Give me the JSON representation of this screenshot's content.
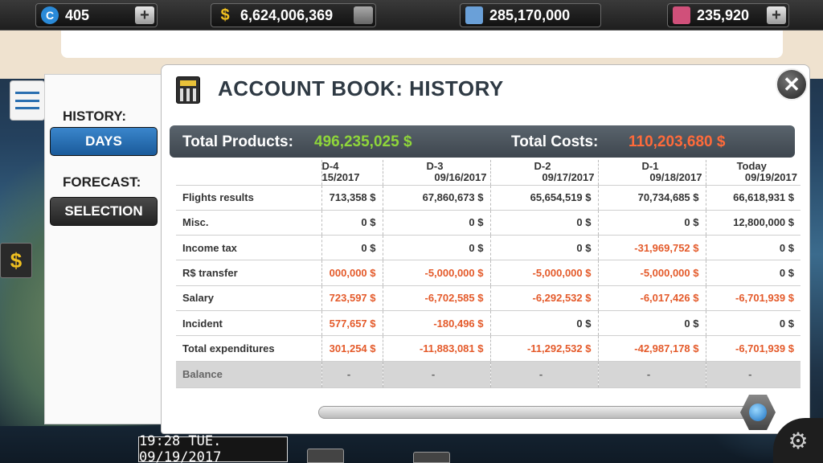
{
  "topbar": {
    "coins": "405",
    "cash": "6,624,006,369",
    "fuel": "285,170,000",
    "tickets": "235,920",
    "plus": "+",
    "coins_icon": "C",
    "cash_icon": "$"
  },
  "side": {
    "history_label": "HISTORY:",
    "days_button": "DAYS",
    "forecast_label": "FORECAST:",
    "selection_button": "SELECTION"
  },
  "dollar_button": "$",
  "panel": {
    "title": "ACCOUNT BOOK: HISTORY",
    "close": "✕",
    "total_products_label": "Total Products:",
    "total_products_value": "496,235,025 $",
    "total_costs_label": "Total Costs:",
    "total_costs_value": "110,203,680 $"
  },
  "table": {
    "columns": [
      {
        "day": "D-4",
        "date": "15/2017"
      },
      {
        "day": "D-3",
        "date": "09/16/2017"
      },
      {
        "day": "D-2",
        "date": "09/17/2017"
      },
      {
        "day": "D-1",
        "date": "09/18/2017"
      },
      {
        "day": "Today",
        "date": "09/19/2017"
      }
    ],
    "rows": [
      {
        "label": "Flights results",
        "values": [
          "713,358 $",
          "67,860,673 $",
          "65,654,519 $",
          "70,734,685 $",
          "66,618,931 $"
        ]
      },
      {
        "label": "Misc.",
        "values": [
          "0 $",
          "0 $",
          "0 $",
          "0 $",
          "12,800,000 $"
        ]
      },
      {
        "label": "Income tax",
        "values": [
          "0 $",
          "0 $",
          "0 $",
          "-31,969,752 $",
          "0 $"
        ]
      },
      {
        "label": "R$ transfer",
        "values": [
          "000,000 $",
          "-5,000,000 $",
          "-5,000,000 $",
          "-5,000,000 $",
          "0 $"
        ]
      },
      {
        "label": "Salary",
        "values": [
          "723,597 $",
          "-6,702,585 $",
          "-6,292,532 $",
          "-6,017,426 $",
          "-6,701,939 $"
        ]
      },
      {
        "label": "Incident",
        "values": [
          "577,657 $",
          "-180,496 $",
          "0 $",
          "0 $",
          "0 $"
        ]
      },
      {
        "label": "Total expenditures",
        "values": [
          "301,254 $",
          "-11,883,081 $",
          "-11,292,532 $",
          "-42,987,178 $",
          "-6,701,939 $"
        ]
      },
      {
        "label": "Balance",
        "values": [
          "-",
          "-",
          "-",
          "-",
          "-"
        ]
      }
    ],
    "negative_cells": [
      [
        3,
        0
      ],
      [
        3,
        1
      ],
      [
        3,
        2
      ],
      [
        3,
        3
      ],
      [
        4,
        0
      ],
      [
        4,
        1
      ],
      [
        4,
        2
      ],
      [
        4,
        3
      ],
      [
        4,
        4
      ],
      [
        5,
        0
      ],
      [
        5,
        1
      ],
      [
        6,
        0
      ],
      [
        6,
        1
      ],
      [
        6,
        2
      ],
      [
        6,
        3
      ],
      [
        6,
        4
      ],
      [
        2,
        3
      ]
    ]
  },
  "bottom": {
    "clock": "19:28 TUE. 09/19/2017",
    "gear": "⚙"
  },
  "colors": {
    "positive": "#7fcf2a",
    "negative": "#e45a2a",
    "days_button": "#1f64a8",
    "selection_button": "#2a2a2a"
  }
}
